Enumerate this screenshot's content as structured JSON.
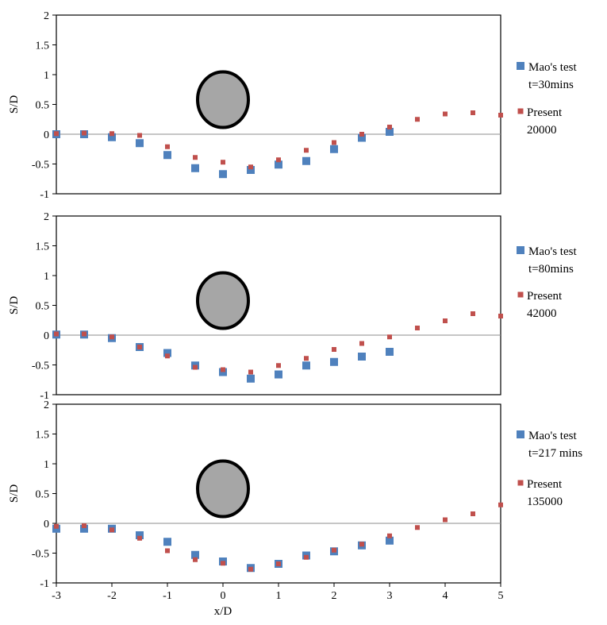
{
  "chart_data": [
    {
      "type": "scatter",
      "title": "",
      "xlabel": "",
      "ylabel": "S/D",
      "xlim": [
        -3,
        5
      ],
      "ylim": [
        -1,
        2
      ],
      "yticks": [
        "-1",
        "-0.5",
        "0",
        "0.5",
        "1",
        "1.5",
        "2"
      ],
      "xticks": [],
      "grid": false,
      "legend_position": "right",
      "colors": {
        "mao": "#4f81bd",
        "present": "#c0504d"
      },
      "series": [
        {
          "name": "Mao's test t=30mins",
          "legend_lines": [
            "Mao's test",
            "t=30mins"
          ],
          "marker": "square",
          "x": [
            -3,
            -2.5,
            -2,
            -1.5,
            -1,
            -0.5,
            0,
            0.5,
            1,
            1.5,
            2,
            2.5,
            3
          ],
          "y": [
            0.0,
            0.0,
            -0.05,
            -0.15,
            -0.35,
            -0.57,
            -0.67,
            -0.6,
            -0.51,
            -0.45,
            -0.25,
            -0.06,
            0.04
          ]
        },
        {
          "name": "Present 20000",
          "legend_lines": [
            "Present",
            "20000"
          ],
          "marker": "small-square",
          "x": [
            -3,
            -2.5,
            -2,
            -1.5,
            -1,
            -0.5,
            0,
            0.5,
            1,
            1.5,
            2,
            2.5,
            3,
            3.5,
            4,
            4.5,
            5
          ],
          "y": [
            0.01,
            0.02,
            0.01,
            -0.02,
            -0.21,
            -0.39,
            -0.47,
            -0.55,
            -0.43,
            -0.27,
            -0.14,
            0.0,
            0.12,
            0.25,
            0.34,
            0.36,
            0.32
          ]
        }
      ]
    },
    {
      "type": "scatter",
      "title": "",
      "xlabel": "",
      "ylabel": "S/D",
      "xlim": [
        -3,
        5
      ],
      "ylim": [
        -1,
        2
      ],
      "yticks": [
        "-1",
        "-0.5",
        "0",
        "0.5",
        "1",
        "1.5",
        "2"
      ],
      "xticks": [],
      "grid": false,
      "legend_position": "right",
      "colors": {
        "mao": "#4f81bd",
        "present": "#c0504d"
      },
      "series": [
        {
          "name": "Mao's test t=80mins",
          "legend_lines": [
            "Mao's test",
            "t=80mins"
          ],
          "marker": "square",
          "x": [
            -3,
            -2.5,
            -2,
            -1.5,
            -1,
            -0.5,
            0,
            0.5,
            1,
            1.5,
            2,
            2.5,
            3
          ],
          "y": [
            0.01,
            0.01,
            -0.05,
            -0.2,
            -0.3,
            -0.51,
            -0.62,
            -0.73,
            -0.66,
            -0.51,
            -0.45,
            -0.36,
            -0.28
          ]
        },
        {
          "name": "Present 42000",
          "legend_lines": [
            "Present",
            "42000"
          ],
          "marker": "small-square",
          "x": [
            -3,
            -2.5,
            -2,
            -1.5,
            -1,
            -0.5,
            0,
            0.5,
            1,
            1.5,
            2,
            2.5,
            3,
            3.5,
            4,
            4.5,
            5
          ],
          "y": [
            0.02,
            0.02,
            -0.03,
            -0.2,
            -0.35,
            -0.54,
            -0.58,
            -0.62,
            -0.51,
            -0.39,
            -0.24,
            -0.14,
            -0.03,
            0.12,
            0.24,
            0.36,
            0.32
          ]
        }
      ]
    },
    {
      "type": "scatter",
      "title": "",
      "xlabel": "x/D",
      "ylabel": "S/D",
      "xlim": [
        -3,
        5
      ],
      "ylim": [
        -1,
        2
      ],
      "yticks": [
        "-1",
        "-0.5",
        "0",
        "0.5",
        "1",
        "1.5",
        "2"
      ],
      "xticks": [
        "-3",
        "-2",
        "-1",
        "0",
        "1",
        "2",
        "3",
        "4",
        "5"
      ],
      "grid": false,
      "legend_position": "right",
      "colors": {
        "mao": "#4f81bd",
        "present": "#c0504d"
      },
      "series": [
        {
          "name": "Mao's test t=217 mins",
          "legend_lines": [
            "Mao's test",
            "t=217 mins"
          ],
          "marker": "square",
          "x": [
            -3,
            -2.5,
            -2,
            -1.5,
            -1,
            -0.5,
            0,
            0.5,
            1,
            1.5,
            2,
            2.5,
            3
          ],
          "y": [
            -0.09,
            -0.09,
            -0.09,
            -0.2,
            -0.31,
            -0.53,
            -0.64,
            -0.75,
            -0.68,
            -0.54,
            -0.47,
            -0.37,
            -0.29
          ]
        },
        {
          "name": "Present 135000",
          "legend_lines": [
            "Present",
            "135000"
          ],
          "marker": "small-square",
          "x": [
            -3,
            -2.5,
            -2,
            -1.5,
            -1,
            -0.5,
            0,
            0.5,
            1,
            1.5,
            2,
            2.5,
            3,
            3.5,
            4,
            4.5,
            5
          ],
          "y": [
            -0.05,
            -0.04,
            -0.11,
            -0.25,
            -0.46,
            -0.61,
            -0.67,
            -0.77,
            -0.68,
            -0.57,
            -0.45,
            -0.35,
            -0.21,
            -0.07,
            0.06,
            0.16,
            0.31
          ]
        }
      ]
    }
  ]
}
